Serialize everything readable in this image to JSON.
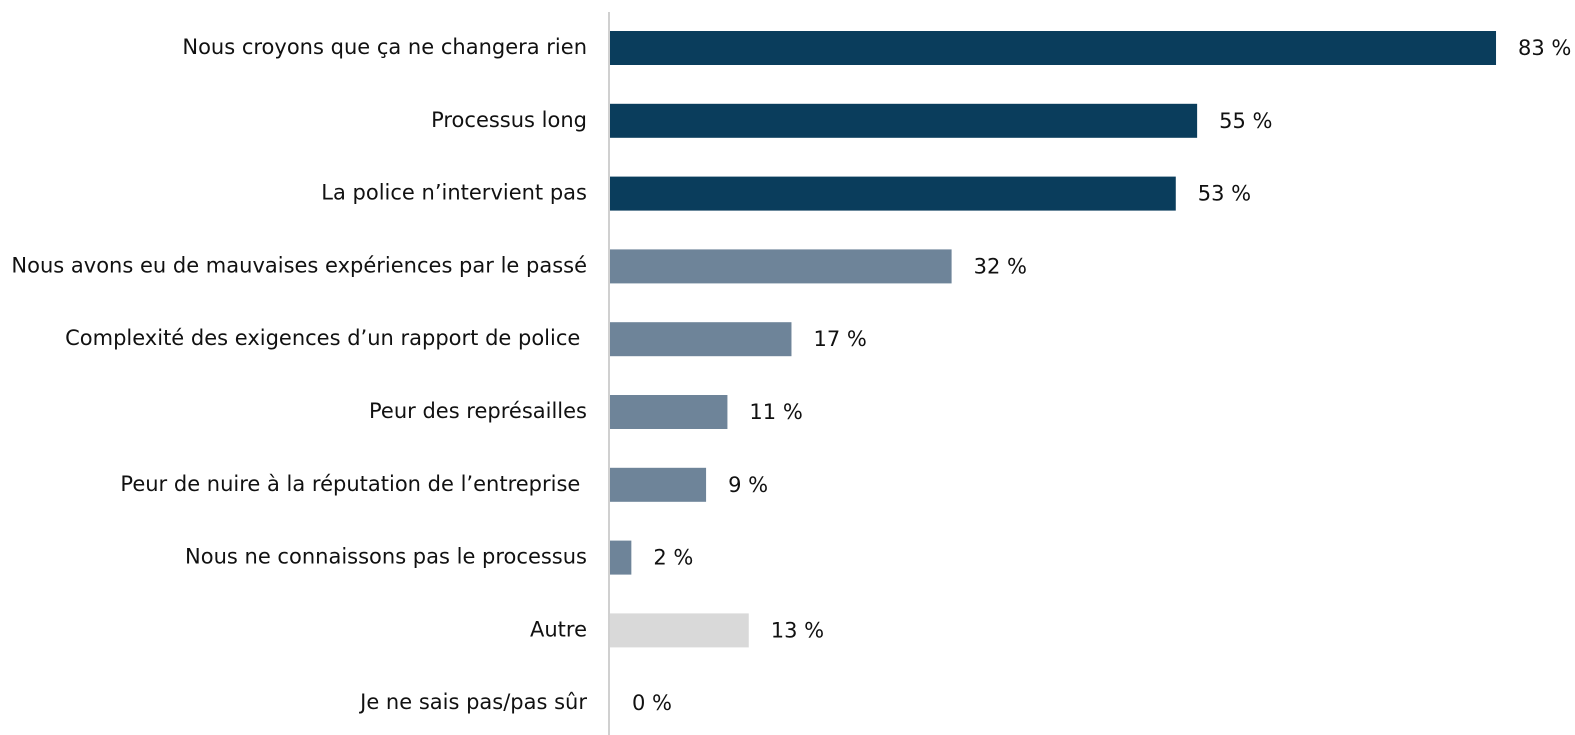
{
  "chart_data": {
    "type": "bar",
    "orientation": "horizontal",
    "categories": [
      "Nous croyons que ça ne changera rien",
      "Processus long",
      "La police n’intervient pas",
      "Nous avons eu de mauvaises expériences par le passé",
      "Complexité des exigences d’un rapport de police ",
      "Peur des représailles",
      "Peur de nuire à la réputation de l’entreprise ",
      "Nous ne connaissons pas le processus",
      "Autre",
      "Je ne sais pas/pas sûr"
    ],
    "values": [
      83,
      55,
      53,
      32,
      17,
      11,
      9,
      2,
      13,
      0
    ],
    "value_labels": [
      "83 %",
      "55 %",
      "53 %",
      "32 %",
      "17 %",
      "11 %",
      "9 %",
      "2 %",
      "13 %",
      "0 %"
    ],
    "colors": [
      "#0a3d5c",
      "#0a3d5c",
      "#0a3d5c",
      "#6e8499",
      "#6e8499",
      "#6e8499",
      "#6e8499",
      "#6e8499",
      "#d9d9d9",
      "#d9d9d9"
    ]
  }
}
